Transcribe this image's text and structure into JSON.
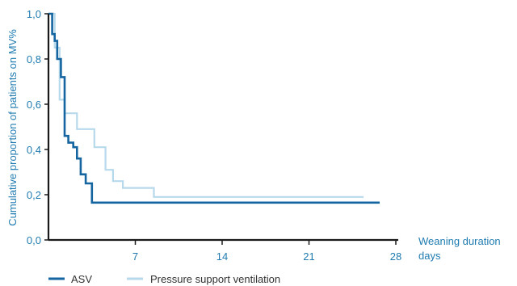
{
  "chart_data": {
    "type": "line",
    "step": true,
    "ylabel": "Cumulative proportion of patients on MV%",
    "xlabel_line1": "Weaning duration",
    "xlabel_line2": "days",
    "xlim": [
      0,
      28
    ],
    "ylim": [
      0,
      1
    ],
    "x_ticks": [
      7,
      14,
      21,
      28
    ],
    "x_tick_labels": [
      "7",
      "14",
      "21",
      "28"
    ],
    "y_ticks": [
      0,
      0.2,
      0.4,
      0.6,
      0.8,
      1.0
    ],
    "y_tick_labels": [
      "0,0",
      "0,2",
      "0,4",
      "0,6",
      "0,8",
      "1,0"
    ],
    "grid": false,
    "legend_position": "bottom-left",
    "series": [
      {
        "name": "ASV",
        "color": "#1565a0",
        "x": [
          0,
          0.3,
          0.3,
          0.5,
          0.5,
          0.7,
          0.7,
          1.0,
          1.0,
          1.3,
          1.3,
          1.6,
          1.6,
          2.0,
          2.0,
          2.3,
          2.3,
          2.6,
          2.6,
          3.0,
          3.0,
          3.5,
          3.5,
          26.7
        ],
        "y": [
          1.0,
          1.0,
          0.91,
          0.91,
          0.88,
          0.88,
          0.8,
          0.8,
          0.72,
          0.72,
          0.46,
          0.46,
          0.43,
          0.43,
          0.41,
          0.41,
          0.36,
          0.36,
          0.29,
          0.29,
          0.25,
          0.25,
          0.165,
          0.165
        ]
      },
      {
        "name": "Pressure support ventilation",
        "color": "#b7d9ec",
        "x": [
          0,
          0.5,
          0.5,
          0.9,
          0.9,
          1.3,
          1.3,
          2.3,
          2.3,
          3.7,
          3.7,
          4.6,
          4.6,
          5.2,
          5.2,
          6.0,
          6.0,
          7.0,
          7.0,
          8.5,
          8.5,
          25.4
        ],
        "y": [
          1.0,
          1.0,
          0.85,
          0.85,
          0.62,
          0.62,
          0.56,
          0.56,
          0.49,
          0.49,
          0.41,
          0.41,
          0.31,
          0.31,
          0.26,
          0.26,
          0.23,
          0.23,
          0.23,
          0.23,
          0.19,
          0.19
        ]
      }
    ]
  }
}
